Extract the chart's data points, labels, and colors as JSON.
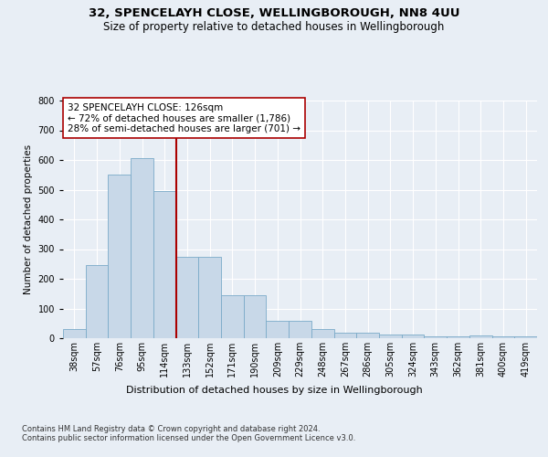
{
  "title1": "32, SPENCELAYH CLOSE, WELLINGBOROUGH, NN8 4UU",
  "title2": "Size of property relative to detached houses in Wellingborough",
  "xlabel": "Distribution of detached houses by size in Wellingborough",
  "ylabel": "Number of detached properties",
  "categories": [
    "38sqm",
    "57sqm",
    "76sqm",
    "95sqm",
    "114sqm",
    "133sqm",
    "152sqm",
    "171sqm",
    "190sqm",
    "209sqm",
    "229sqm",
    "248sqm",
    "267sqm",
    "286sqm",
    "305sqm",
    "324sqm",
    "343sqm",
    "362sqm",
    "381sqm",
    "400sqm",
    "419sqm"
  ],
  "values": [
    30,
    245,
    550,
    605,
    495,
    275,
    275,
    145,
    145,
    60,
    60,
    30,
    18,
    18,
    12,
    12,
    5,
    5,
    8,
    5,
    5
  ],
  "bar_color": "#c8d8e8",
  "bar_edge_color": "#7aaac8",
  "vline_x_pos": 4.5,
  "vline_color": "#aa0000",
  "annotation_text": "32 SPENCELAYH CLOSE: 126sqm\n← 72% of detached houses are smaller (1,786)\n28% of semi-detached houses are larger (701) →",
  "annotation_box_color": "#ffffff",
  "annotation_box_edge": "#aa0000",
  "footnote": "Contains HM Land Registry data © Crown copyright and database right 2024.\nContains public sector information licensed under the Open Government Licence v3.0.",
  "ylim": [
    0,
    800
  ],
  "background_color": "#e8eef5",
  "plot_bg_color": "#e8eef5",
  "title1_fontsize": 9.5,
  "title2_fontsize": 8.5,
  "xlabel_fontsize": 8,
  "ylabel_fontsize": 7.5,
  "tick_fontsize": 7,
  "footnote_fontsize": 6,
  "annot_fontsize": 7.5
}
